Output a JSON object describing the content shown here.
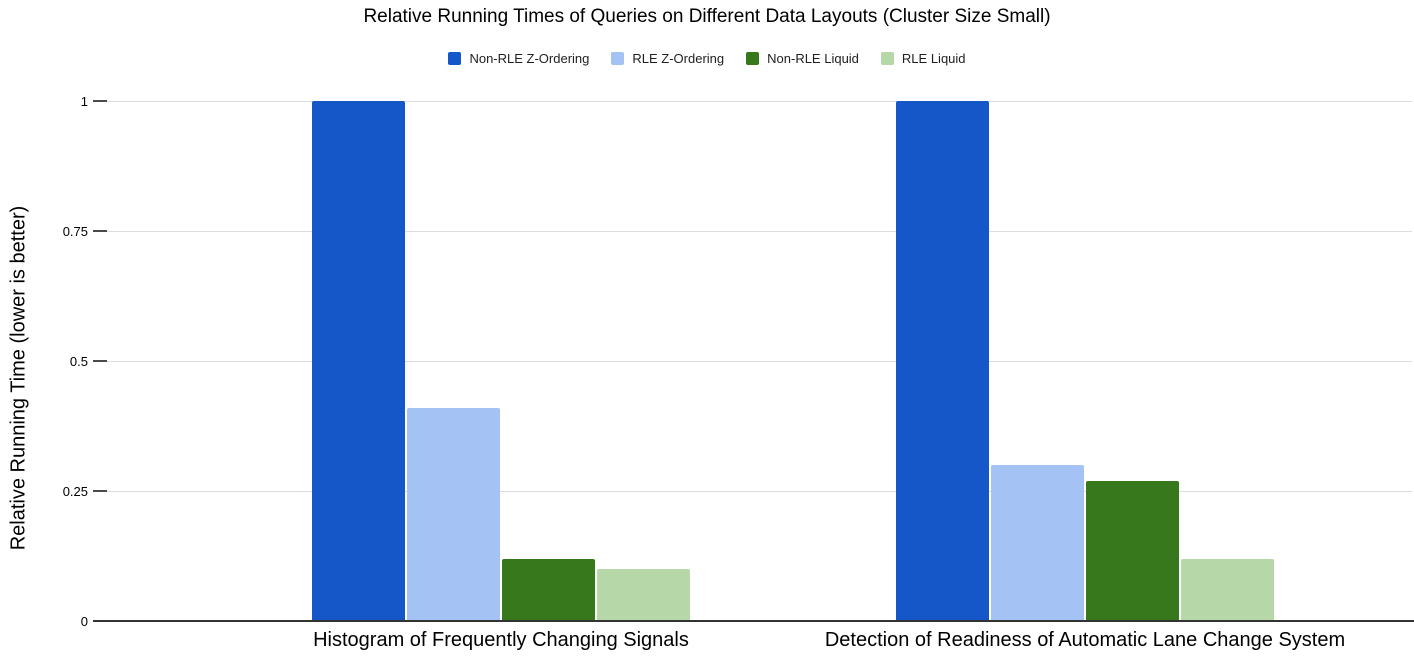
{
  "title": "Relative Running Times of Queries on Different Data Layouts (Cluster Size Small)",
  "y_axis": {
    "title": "Relative Running Time (lower is better)"
  },
  "colors": {
    "non_rle_z_ordering": "#1557c9",
    "rle_z_ordering": "#a4c2f4",
    "non_rle_liquid": "#38781d",
    "rle_liquid": "#b6d7a8",
    "gridline": "#dcdcdc",
    "baseline": "#333333"
  },
  "chart_data": {
    "type": "bar",
    "title": "Relative Running Times of Queries on Different Data Layouts (Cluster Size Small)",
    "categories": [
      "Histogram of Frequently Changing Signals",
      "Detection of Readiness of Automatic Lane Change System"
    ],
    "series": [
      {
        "name": "Non-RLE Z-Ordering",
        "color": "#1557c9",
        "values": [
          1.0,
          1.0
        ]
      },
      {
        "name": "RLE Z-Ordering",
        "color": "#a4c2f4",
        "values": [
          0.41,
          0.3
        ]
      },
      {
        "name": "Non-RLE Liquid",
        "color": "#38781d",
        "values": [
          0.12,
          0.27
        ]
      },
      {
        "name": "RLE Liquid",
        "color": "#b6d7a8",
        "values": [
          0.1,
          0.12
        ]
      }
    ],
    "xlabel": "",
    "ylabel": "Relative Running Time (lower is better)",
    "ylim": [
      0,
      1
    ],
    "yticks": [
      {
        "value": 0,
        "label": "0"
      },
      {
        "value": 0.25,
        "label": "0.25"
      },
      {
        "value": 0.5,
        "label": "0.5"
      },
      {
        "value": 0.75,
        "label": "0.75"
      },
      {
        "value": 1,
        "label": "1"
      }
    ],
    "grid": true,
    "legend_position": "top"
  }
}
